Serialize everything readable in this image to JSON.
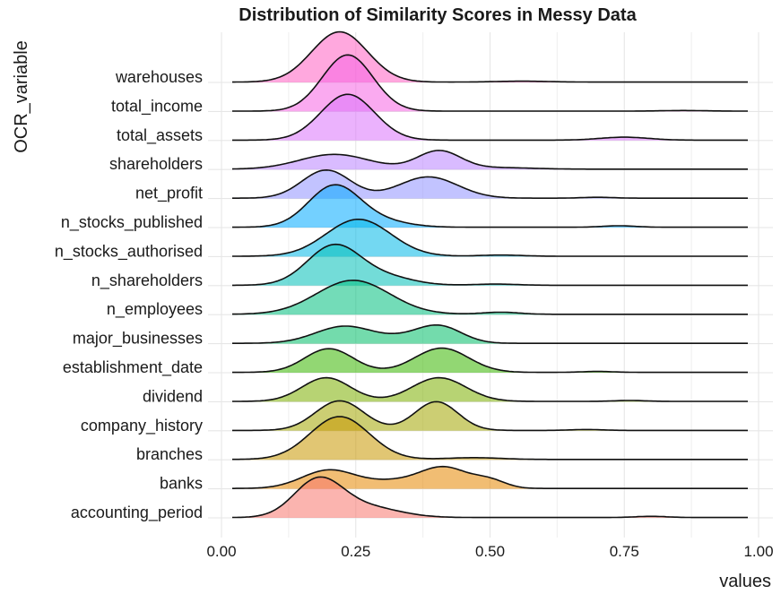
{
  "chart_data": {
    "type": "ridgeline",
    "title": "Distribution of Similarity Scores in Messy Data",
    "xlabel": "values",
    "ylabel": "OCR_variable",
    "xlim": [
      0,
      1
    ],
    "x_ticks": [
      "0.00",
      "0.25",
      "0.50",
      "0.75",
      "1.00"
    ],
    "x_tick_values": [
      0,
      0.25,
      0.5,
      0.75,
      1.0
    ],
    "grid": true,
    "legend": "none",
    "data_range": [
      0.02,
      0.98
    ],
    "series": [
      {
        "name": "warehouses",
        "color": "#FF61C3",
        "peaks": [
          {
            "mu": 0.22,
            "sd": 0.052,
            "h": 1.7
          },
          {
            "mu": 0.56,
            "sd": 0.05,
            "h": 0.03
          }
        ]
      },
      {
        "name": "total_income",
        "color": "#F564E3",
        "peaks": [
          {
            "mu": 0.235,
            "sd": 0.047,
            "h": 1.9
          },
          {
            "mu": 0.86,
            "sd": 0.04,
            "h": 0.02
          }
        ]
      },
      {
        "name": "total_assets",
        "color": "#DB72FB",
        "peaks": [
          {
            "mu": 0.235,
            "sd": 0.05,
            "h": 1.55
          },
          {
            "mu": 0.75,
            "sd": 0.045,
            "h": 0.1
          }
        ]
      },
      {
        "name": "shareholders",
        "color": "#B983FF",
        "peaks": [
          {
            "mu": 0.21,
            "sd": 0.065,
            "h": 0.5
          },
          {
            "mu": 0.405,
            "sd": 0.04,
            "h": 0.62
          },
          {
            "mu": 0.52,
            "sd": 0.06,
            "h": 0.05
          }
        ]
      },
      {
        "name": "net_profit",
        "color": "#8F91FF",
        "peaks": [
          {
            "mu": 0.195,
            "sd": 0.045,
            "h": 0.95
          },
          {
            "mu": 0.385,
            "sd": 0.055,
            "h": 0.72
          },
          {
            "mu": 0.7,
            "sd": 0.03,
            "h": 0.03
          }
        ]
      },
      {
        "name": "n_stocks_published",
        "color": "#00A9FF",
        "peaks": [
          {
            "mu": 0.21,
            "sd": 0.048,
            "h": 1.4
          },
          {
            "mu": 0.3,
            "sd": 0.05,
            "h": 0.18
          },
          {
            "mu": 0.74,
            "sd": 0.03,
            "h": 0.05
          }
        ]
      },
      {
        "name": "n_stocks_authorised",
        "color": "#00B8E7",
        "peaks": [
          {
            "mu": 0.255,
            "sd": 0.06,
            "h": 1.25
          },
          {
            "mu": 0.52,
            "sd": 0.04,
            "h": 0.04
          }
        ]
      },
      {
        "name": "n_shareholders",
        "color": "#00C0B8",
        "peaks": [
          {
            "mu": 0.21,
            "sd": 0.05,
            "h": 1.35
          },
          {
            "mu": 0.31,
            "sd": 0.05,
            "h": 0.25
          },
          {
            "mu": 0.51,
            "sd": 0.04,
            "h": 0.04
          }
        ]
      },
      {
        "name": "n_employees",
        "color": "#00BF7D",
        "peaks": [
          {
            "mu": 0.245,
            "sd": 0.068,
            "h": 1.15
          },
          {
            "mu": 0.52,
            "sd": 0.035,
            "h": 0.07
          }
        ]
      },
      {
        "name": "major_businesses",
        "color": "#00BE67",
        "peaks": [
          {
            "mu": 0.23,
            "sd": 0.055,
            "h": 0.58
          },
          {
            "mu": 0.34,
            "sd": 0.04,
            "h": 0.12
          },
          {
            "mu": 0.405,
            "sd": 0.042,
            "h": 0.58
          }
        ]
      },
      {
        "name": "establishment_date",
        "color": "#39B600",
        "peaks": [
          {
            "mu": 0.2,
            "sd": 0.045,
            "h": 0.8
          },
          {
            "mu": 0.41,
            "sd": 0.05,
            "h": 0.82
          },
          {
            "mu": 0.7,
            "sd": 0.03,
            "h": 0.03
          }
        ]
      },
      {
        "name": "dividend",
        "color": "#7CAE00",
        "peaks": [
          {
            "mu": 0.195,
            "sd": 0.045,
            "h": 0.8
          },
          {
            "mu": 0.405,
            "sd": 0.05,
            "h": 0.8
          },
          {
            "mu": 0.76,
            "sd": 0.03,
            "h": 0.03
          }
        ]
      },
      {
        "name": "company_history",
        "color": "#A3A500",
        "peaks": [
          {
            "mu": 0.22,
            "sd": 0.045,
            "h": 1.0
          },
          {
            "mu": 0.4,
            "sd": 0.04,
            "h": 0.97
          },
          {
            "mu": 0.68,
            "sd": 0.03,
            "h": 0.03
          }
        ]
      },
      {
        "name": "branches",
        "color": "#C99800",
        "peaks": [
          {
            "mu": 0.22,
            "sd": 0.055,
            "h": 1.45
          },
          {
            "mu": 0.47,
            "sd": 0.05,
            "h": 0.06
          }
        ]
      },
      {
        "name": "banks",
        "color": "#E58700",
        "peaks": [
          {
            "mu": 0.2,
            "sd": 0.05,
            "h": 0.62
          },
          {
            "mu": 0.32,
            "sd": 0.05,
            "h": 0.22
          },
          {
            "mu": 0.415,
            "sd": 0.045,
            "h": 0.7
          },
          {
            "mu": 0.5,
            "sd": 0.03,
            "h": 0.25
          }
        ]
      },
      {
        "name": "accounting_period",
        "color": "#F8766D",
        "peaks": [
          {
            "mu": 0.18,
            "sd": 0.045,
            "h": 1.25
          },
          {
            "mu": 0.27,
            "sd": 0.06,
            "h": 0.35
          },
          {
            "mu": 0.8,
            "sd": 0.03,
            "h": 0.04
          }
        ]
      }
    ]
  }
}
